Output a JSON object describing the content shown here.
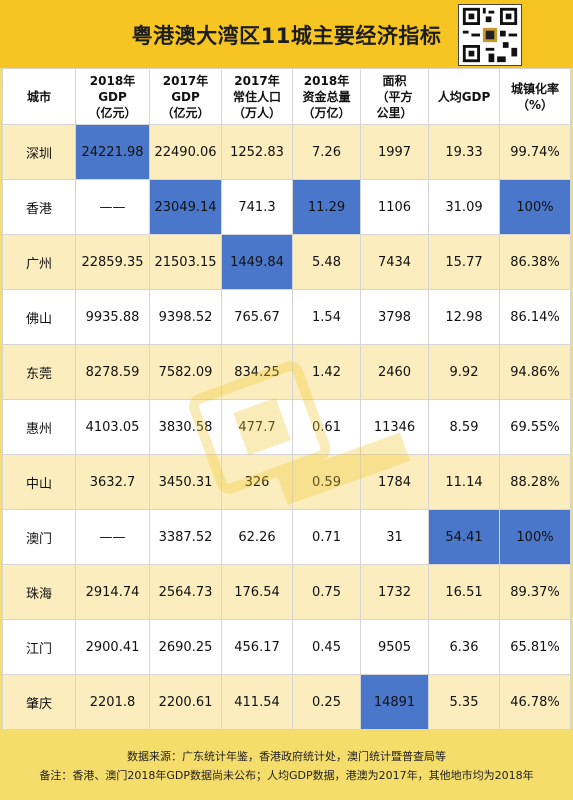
{
  "title": "粤港澳大湾区11城主要经济指标",
  "columns": [
    {
      "lines": [
        "城市"
      ]
    },
    {
      "lines": [
        "2018年",
        "GDP",
        "（亿元）"
      ]
    },
    {
      "lines": [
        "2017年",
        "GDP",
        "（亿元）"
      ]
    },
    {
      "lines": [
        "2017年",
        "常住人口",
        "（万人）"
      ]
    },
    {
      "lines": [
        "2018年",
        "资金总量",
        "（万亿）"
      ]
    },
    {
      "lines": [
        "面积",
        "（平方",
        "公里）"
      ]
    },
    {
      "lines": [
        "人均GDP"
      ]
    },
    {
      "lines": [
        "城镇化率",
        "（%）"
      ]
    }
  ],
  "rows": [
    {
      "city": "深圳",
      "cells": [
        "24221.98",
        "22490.06",
        "1252.83",
        "7.26",
        "1997",
        "19.33",
        "99.74%"
      ],
      "highlight": [
        0
      ]
    },
    {
      "city": "香港",
      "cells": [
        "——",
        "23049.14",
        "741.3",
        "11.29",
        "1106",
        "31.09",
        "100%"
      ],
      "highlight": [
        1,
        3,
        6
      ]
    },
    {
      "city": "广州",
      "cells": [
        "22859.35",
        "21503.15",
        "1449.84",
        "5.48",
        "7434",
        "15.77",
        "86.38%"
      ],
      "highlight": [
        2
      ]
    },
    {
      "city": "佛山",
      "cells": [
        "9935.88",
        "9398.52",
        "765.67",
        "1.54",
        "3798",
        "12.98",
        "86.14%"
      ],
      "highlight": []
    },
    {
      "city": "东莞",
      "cells": [
        "8278.59",
        "7582.09",
        "834.25",
        "1.42",
        "2460",
        "9.92",
        "94.86%"
      ],
      "highlight": []
    },
    {
      "city": "惠州",
      "cells": [
        "4103.05",
        "3830.58",
        "477.7",
        "0.61",
        "11346",
        "8.59",
        "69.55%"
      ],
      "highlight": []
    },
    {
      "city": "中山",
      "cells": [
        "3632.7",
        "3450.31",
        "326",
        "0.59",
        "1784",
        "11.14",
        "88.28%"
      ],
      "highlight": []
    },
    {
      "city": "澳门",
      "cells": [
        "——",
        "3387.52",
        "62.26",
        "0.71",
        "31",
        "54.41",
        "100%"
      ],
      "highlight": [
        5,
        6
      ]
    },
    {
      "city": "珠海",
      "cells": [
        "2914.74",
        "2564.73",
        "176.54",
        "0.75",
        "1732",
        "16.51",
        "89.37%"
      ],
      "highlight": []
    },
    {
      "city": "江门",
      "cells": [
        "2900.41",
        "2690.25",
        "456.17",
        "0.45",
        "9505",
        "6.36",
        "65.81%"
      ],
      "highlight": []
    },
    {
      "city": "肇庆",
      "cells": [
        "2201.8",
        "2200.61",
        "411.54",
        "0.25",
        "14891",
        "5.35",
        "46.78%"
      ],
      "highlight": [
        4
      ]
    }
  ],
  "footer": {
    "source": "数据来源：广东统计年鉴，香港政府统计处，澳门统计暨普查局等",
    "note": "备注：香港、澳门2018年GDP数据尚未公布；人均GDP数据，港澳为2017年，其他地市均为2018年"
  },
  "colors": {
    "header_yellow": "#f6c521",
    "row_yellow": "#fbedbd",
    "highlight_blue": "#4a77c9"
  },
  "icons": {
    "qr": "qr-code-icon",
    "watermark": "watermark-logo"
  }
}
